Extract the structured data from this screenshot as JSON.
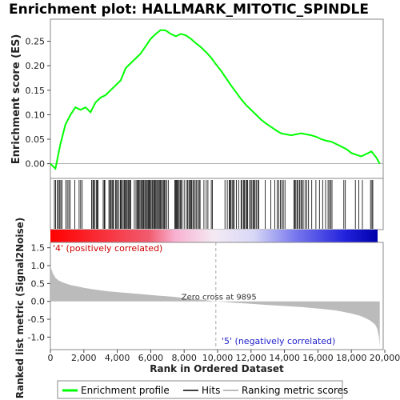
{
  "chart_data": {
    "title": "Enrichment plot: HALLMARK_MITOTIC_SPINDLE",
    "type": "line",
    "es_panel": {
      "ylabel": "Enrichment score (ES)",
      "ylim": [
        -0.03,
        0.295
      ],
      "yticks": [
        0.0,
        0.05,
        0.1,
        0.15,
        0.2,
        0.25
      ],
      "ytick_labels": [
        "0.00",
        "0.05",
        "0.10",
        "0.15",
        "0.20",
        "0.25"
      ],
      "series": [
        {
          "name": "Enrichment profile",
          "color": "#00ff00",
          "x": [
            0,
            300,
            600,
            900,
            1200,
            1500,
            1800,
            2100,
            2400,
            2700,
            3000,
            3300,
            3600,
            3900,
            4200,
            4500,
            4800,
            5100,
            5400,
            5700,
            6000,
            6300,
            6600,
            6900,
            7200,
            7500,
            7800,
            8100,
            8400,
            8700,
            9000,
            9300,
            9600,
            9900,
            10200,
            10500,
            10800,
            11100,
            11400,
            11700,
            12000,
            12300,
            12600,
            12900,
            13200,
            13500,
            13800,
            14100,
            14400,
            14700,
            15000,
            15300,
            15600,
            15900,
            16200,
            16500,
            16800,
            17100,
            17400,
            17700,
            18000,
            18300,
            18600,
            18900,
            19200,
            19500,
            19700
          ],
          "y": [
            0.0,
            -0.01,
            0.04,
            0.08,
            0.1,
            0.115,
            0.11,
            0.115,
            0.105,
            0.125,
            0.135,
            0.14,
            0.15,
            0.16,
            0.17,
            0.195,
            0.205,
            0.215,
            0.225,
            0.24,
            0.255,
            0.265,
            0.273,
            0.272,
            0.265,
            0.26,
            0.265,
            0.262,
            0.255,
            0.246,
            0.238,
            0.228,
            0.217,
            0.203,
            0.19,
            0.175,
            0.16,
            0.146,
            0.132,
            0.12,
            0.11,
            0.1,
            0.09,
            0.082,
            0.075,
            0.068,
            0.062,
            0.06,
            0.058,
            0.06,
            0.062,
            0.06,
            0.058,
            0.055,
            0.05,
            0.047,
            0.045,
            0.04,
            0.035,
            0.03,
            0.022,
            0.018,
            0.015,
            0.02,
            0.025,
            0.012,
            0.0
          ]
        }
      ]
    },
    "hits_panel": {
      "series_name": "Hits",
      "hit_ranks": [
        240,
        310,
        420,
        480,
        560,
        620,
        700,
        920,
        1010,
        1100,
        1180,
        1460,
        1720,
        1810,
        1900,
        2460,
        2540,
        2580,
        2650,
        2740,
        2800,
        2850,
        3160,
        3220,
        3260,
        3500,
        3560,
        3600,
        3680,
        3730,
        3780,
        3900,
        3960,
        4010,
        4100,
        4180,
        4220,
        4280,
        4360,
        4420,
        4480,
        4540,
        4590,
        4650,
        4700,
        4760,
        4800,
        5020,
        5120,
        5180,
        5230,
        5290,
        5350,
        5410,
        5460,
        5520,
        5580,
        5640,
        5690,
        5750,
        5800,
        5860,
        5910,
        5960,
        6020,
        6080,
        6130,
        6190,
        6240,
        6300,
        6360,
        6410,
        6470,
        6520,
        6580,
        6640,
        6700,
        6760,
        6820,
        6880,
        6950,
        7050,
        7440,
        7490,
        7540,
        7590,
        7640,
        7700,
        7760,
        7810,
        7880,
        8000,
        8130,
        8200,
        8280,
        8330,
        8390,
        8440,
        8520,
        8580,
        8660,
        8740,
        8820,
        8900,
        8950,
        9180,
        9320,
        9420,
        9620,
        9690,
        10440,
        10580,
        10690,
        10740,
        10800,
        10870,
        10930,
        11000,
        11120,
        11260,
        11400,
        11460,
        11560,
        11610,
        11680,
        11740,
        11800,
        11900,
        11990,
        12050,
        12120,
        12180,
        12240,
        12310,
        12400,
        12460,
        12850,
        13180,
        13420,
        13560,
        13660,
        13760,
        13840,
        13930,
        14030,
        14560,
        14620,
        14680,
        14750,
        14820,
        14900,
        14980,
        15040,
        15120,
        15230,
        15330,
        15440,
        15630,
        15880,
        16090,
        16280,
        16460,
        16610,
        16690,
        16770,
        16840,
        17550,
        17640,
        18240,
        18440,
        18660,
        19150,
        19230,
        19280
      ],
      "colorbar_label_pos": "'4' (positively correlated)",
      "colorbar_label_neg": "'5' (negatively correlated)"
    },
    "metric_panel": {
      "ylabel": "Ranked list metric (Signal2Noise)",
      "xlabel": "Rank in Ordered Dataset",
      "ylim": [
        -1.35,
        1.65
      ],
      "yticks": [
        -1.0,
        -0.5,
        0.0,
        0.5,
        1.0,
        1.5
      ],
      "ytick_labels": [
        "-1.0",
        "-0.5",
        "0.0",
        "0.5",
        "1.0",
        "1.5"
      ],
      "xlim": [
        0,
        20000
      ],
      "xticks": [
        0,
        2000,
        4000,
        6000,
        8000,
        10000,
        12000,
        14000,
        16000,
        18000,
        20000
      ],
      "xtick_labels": [
        "0",
        "2,000",
        "4,000",
        "6,000",
        "8,000",
        "10,000",
        "12,000",
        "14,000",
        "16,000",
        "18,000",
        "20,000"
      ],
      "zero_cross_rank": 9895,
      "zero_cross_label": "Zero cross at 9895",
      "series_name": "Ranking metric scores",
      "x": [
        0,
        50,
        150,
        300,
        500,
        800,
        1200,
        1600,
        2000,
        2500,
        3000,
        3500,
        4000,
        4500,
        5000,
        5500,
        6000,
        6500,
        7000,
        7500,
        8000,
        8500,
        9000,
        9500,
        9895,
        10500,
        11000,
        12000,
        13000,
        14000,
        15000,
        16000,
        17000,
        17500,
        18000,
        18500,
        18800,
        19100,
        19300,
        19450,
        19550,
        19650,
        19700
      ],
      "y": [
        1.0,
        0.92,
        0.78,
        0.66,
        0.58,
        0.52,
        0.46,
        0.42,
        0.38,
        0.34,
        0.31,
        0.28,
        0.26,
        0.24,
        0.22,
        0.2,
        0.18,
        0.16,
        0.14,
        0.12,
        0.09,
        0.07,
        0.05,
        0.02,
        0.0,
        -0.02,
        -0.04,
        -0.07,
        -0.1,
        -0.13,
        -0.16,
        -0.2,
        -0.25,
        -0.29,
        -0.34,
        -0.4,
        -0.46,
        -0.53,
        -0.6,
        -0.67,
        -0.77,
        -1.0,
        -1.28
      ]
    },
    "legend": {
      "items": [
        "Enrichment profile",
        "Hits",
        "Ranking metric scores"
      ],
      "colors": [
        "#00ff00",
        "#000000",
        "#bbbbbb"
      ]
    }
  }
}
